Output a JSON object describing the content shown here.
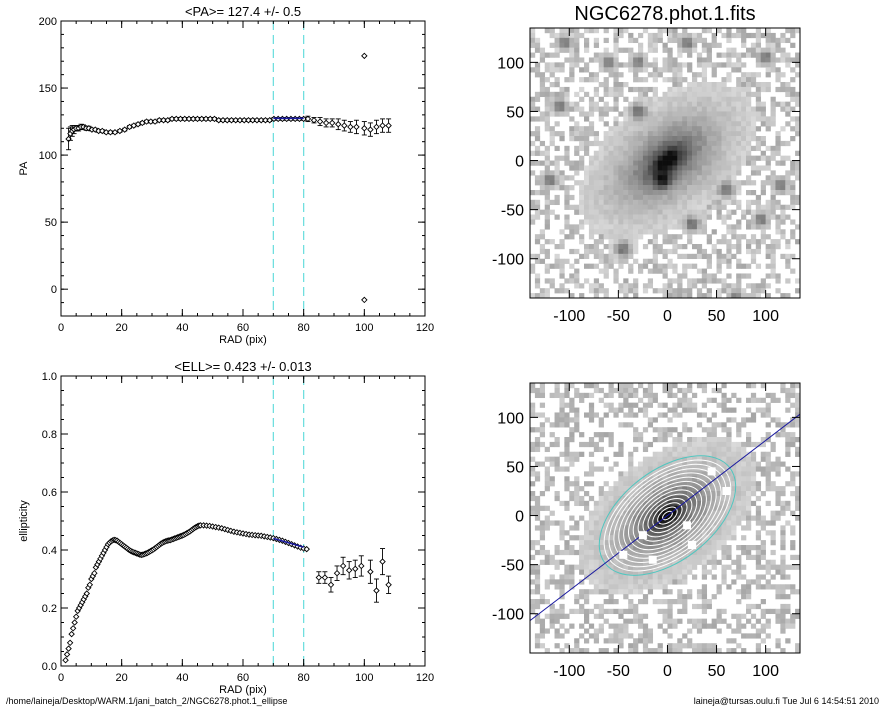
{
  "footer": {
    "path": "/home/laineja/Desktop/WARM.1/jani_batch_2/NGC6278.phot.1_ellipse",
    "user_stamp": "laineja@tursas.oulu.fi  Tue Jul  6 14:54:51 2010"
  },
  "colors": {
    "axis": "#000000",
    "data": "#000000",
    "fit": "#1a1aa0",
    "guide": "#66dddd",
    "isophote": "#ffffff",
    "outer_isophote": "#4fc7c0"
  },
  "chart_data": [
    {
      "id": "pa",
      "type": "scatter",
      "title": "<PA>= 127.4 +/-   0.5",
      "xlabel": "RAD (pix)",
      "ylabel": "PA",
      "xlim": [
        0,
        120
      ],
      "ylim": [
        -20,
        200
      ],
      "xticks": [
        0,
        20,
        40,
        60,
        80,
        100,
        120
      ],
      "yticks": [
        0,
        50,
        100,
        150,
        200
      ],
      "guide_lines_x": [
        70,
        80
      ],
      "fit": {
        "x": [
          70,
          80
        ],
        "y": [
          127.4,
          127.4
        ]
      },
      "x": [
        2.5,
        3.1,
        3.7,
        4.3,
        5,
        5.8,
        6.6,
        7.4,
        8.3,
        9.2,
        10.2,
        11.3,
        12.4,
        13.6,
        14.9,
        16.3,
        17.8,
        19.4,
        21,
        22.6,
        24,
        25.4,
        26.8,
        28.2,
        29.6,
        31,
        32.4,
        33.8,
        35.2,
        36.6,
        38,
        39.4,
        40.8,
        42.2,
        43.6,
        45,
        46.4,
        47.8,
        49.2,
        50.6,
        52,
        53.4,
        54.8,
        56.2,
        57.6,
        59,
        60.4,
        61.8,
        63.2,
        64.6,
        66,
        67.4,
        68.8,
        70.2,
        71.6,
        73,
        74.4,
        75.8,
        77.2,
        78.6,
        80,
        81.4,
        83.4,
        85.4,
        87.4,
        89.4,
        91.4,
        93.4,
        95.4,
        97.4,
        100,
        102,
        104,
        106,
        108
      ],
      "y": [
        112,
        116,
        118,
        119,
        120,
        120,
        121,
        121,
        120,
        120,
        119,
        119,
        118,
        118,
        117,
        117,
        117,
        118,
        119,
        121,
        122,
        123,
        124,
        125,
        125,
        125,
        126,
        126,
        126,
        127,
        127,
        127,
        127,
        127,
        127,
        127,
        127,
        127,
        127,
        127,
        126,
        126,
        126,
        126,
        126,
        126,
        126,
        126,
        126,
        126,
        126,
        126,
        126,
        127,
        127,
        127,
        127,
        127,
        127,
        127,
        127,
        127,
        126,
        125,
        124,
        124,
        123,
        122,
        121,
        121,
        120,
        119,
        121,
        122,
        122
      ],
      "err": [
        8,
        5,
        4,
        3,
        2,
        2,
        2,
        1.5,
        1.5,
        1.5,
        1,
        1,
        1,
        1,
        1,
        1,
        1,
        1,
        1,
        1,
        1,
        1,
        1,
        1,
        1,
        1,
        1,
        1,
        1,
        1,
        1,
        1,
        1,
        1,
        1,
        1,
        1,
        1,
        1,
        1,
        1,
        1,
        1,
        1,
        1,
        1,
        1,
        1,
        1,
        1,
        1,
        1,
        1,
        1,
        1,
        1,
        1,
        1,
        1,
        1,
        1,
        2,
        2,
        3,
        3,
        3,
        4,
        4,
        4,
        5,
        5,
        5,
        5,
        5,
        5
      ],
      "outliers": {
        "x": [
          100,
          100
        ],
        "y": [
          174,
          -8
        ]
      }
    },
    {
      "id": "ell",
      "type": "scatter",
      "title": "<ELL>= 0.423 +/-  0.013",
      "xlabel": "RAD (pix)",
      "ylabel": "ellipticity",
      "xlim": [
        0,
        120
      ],
      "ylim": [
        0,
        1
      ],
      "xticks": [
        0,
        20,
        40,
        60,
        80,
        100,
        120
      ],
      "yticks": [
        0.0,
        0.2,
        0.4,
        0.6,
        0.8,
        1.0
      ],
      "guide_lines_x": [
        70,
        80
      ],
      "fit": {
        "x": [
          70,
          80
        ],
        "y": [
          0.44,
          0.41
        ]
      },
      "x": [
        1.5,
        2,
        2.5,
        3,
        3.5,
        4,
        4.5,
        5,
        5.5,
        6,
        6.5,
        7,
        7.5,
        8,
        8.5,
        9,
        9.5,
        10,
        10.5,
        11,
        11.5,
        12,
        12.5,
        13,
        13.5,
        14,
        14.5,
        15,
        15.5,
        16,
        16.5,
        17,
        17.5,
        18,
        18.5,
        19,
        19.5,
        20,
        20.5,
        21,
        21.5,
        22,
        22.5,
        23,
        23.5,
        24,
        24.5,
        25,
        25.5,
        26,
        26.5,
        27,
        27.5,
        28,
        28.5,
        29,
        29.5,
        30,
        30.5,
        31,
        31.5,
        32,
        32.5,
        33,
        33.5,
        34,
        34.5,
        35,
        35.5,
        36,
        36.5,
        37,
        37.5,
        38,
        38.5,
        39,
        39.5,
        40,
        40.5,
        41,
        41.5,
        42,
        42.5,
        43,
        43.5,
        44,
        44.5,
        45,
        45.5,
        46,
        47,
        48,
        49,
        50,
        51,
        52,
        53,
        54,
        55,
        56,
        57,
        58,
        59,
        60,
        61,
        62,
        63,
        64,
        65,
        66,
        67,
        68,
        69,
        70,
        71,
        72,
        73,
        74,
        75,
        76,
        77,
        78,
        79,
        80,
        81
      ],
      "y": [
        0.02,
        0.04,
        0.06,
        0.08,
        0.11,
        0.13,
        0.15,
        0.17,
        0.19,
        0.2,
        0.21,
        0.22,
        0.23,
        0.24,
        0.25,
        0.27,
        0.28,
        0.3,
        0.31,
        0.32,
        0.34,
        0.35,
        0.36,
        0.37,
        0.38,
        0.39,
        0.4,
        0.41,
        0.42,
        0.425,
        0.43,
        0.433,
        0.435,
        0.434,
        0.432,
        0.428,
        0.424,
        0.42,
        0.416,
        0.412,
        0.408,
        0.404,
        0.4,
        0.397,
        0.394,
        0.392,
        0.39,
        0.388,
        0.386,
        0.384,
        0.383,
        0.384,
        0.386,
        0.388,
        0.39,
        0.393,
        0.396,
        0.399,
        0.402,
        0.406,
        0.41,
        0.414,
        0.418,
        0.422,
        0.425,
        0.428,
        0.43,
        0.432,
        0.433,
        0.434,
        0.436,
        0.438,
        0.44,
        0.442,
        0.444,
        0.446,
        0.448,
        0.45,
        0.452,
        0.455,
        0.458,
        0.461,
        0.464,
        0.468,
        0.472,
        0.476,
        0.479,
        0.482,
        0.484,
        0.485,
        0.485,
        0.484,
        0.483,
        0.481,
        0.479,
        0.477,
        0.475,
        0.472,
        0.469,
        0.466,
        0.463,
        0.461,
        0.459,
        0.457,
        0.455,
        0.453,
        0.452,
        0.451,
        0.45,
        0.449,
        0.447,
        0.445,
        0.443,
        0.441,
        0.438,
        0.435,
        0.432,
        0.428,
        0.424,
        0.42,
        0.416,
        0.412,
        0.408,
        0.405,
        0.403
      ],
      "sparse": {
        "x": [
          85,
          87,
          89,
          91,
          93,
          95,
          97,
          99,
          102,
          104,
          106,
          108
        ],
        "y": [
          0.305,
          0.305,
          0.28,
          0.32,
          0.345,
          0.33,
          0.335,
          0.345,
          0.325,
          0.26,
          0.36,
          0.28
        ],
        "err": [
          0.02,
          0.02,
          0.025,
          0.025,
          0.03,
          0.03,
          0.03,
          0.035,
          0.04,
          0.04,
          0.045,
          0.03
        ]
      }
    },
    {
      "id": "image",
      "type": "heatmap",
      "title": "NGC6278.phot.1.fits",
      "xlim": [
        -140,
        135
      ],
      "ylim": [
        -140,
        135
      ],
      "xticks": [
        -100,
        -50,
        0,
        50,
        100
      ],
      "yticks": [
        -100,
        -50,
        0,
        50,
        100
      ],
      "galaxy": {
        "center": [
          0,
          0
        ],
        "pa_deg": 127.4,
        "ellipticity": 0.423
      },
      "blobs": [
        [
          -30,
          100
        ],
        [
          -30,
          50
        ],
        [
          -105,
          120
        ],
        [
          20,
          120
        ],
        [
          -60,
          100
        ],
        [
          60,
          -30
        ],
        [
          25,
          -65
        ],
        [
          -5,
          -20
        ],
        [
          95,
          -60
        ],
        [
          70,
          -140
        ],
        [
          -45,
          -90
        ],
        [
          -120,
          -20
        ],
        [
          -110,
          55
        ],
        [
          100,
          105
        ],
        [
          115,
          -25
        ]
      ]
    },
    {
      "id": "model",
      "type": "heatmap",
      "title": "",
      "xlim": [
        -140,
        135
      ],
      "ylim": [
        -140,
        135
      ],
      "xticks": [
        -100,
        -50,
        0,
        50,
        100
      ],
      "yticks": [
        -100,
        -50,
        0,
        50,
        100
      ],
      "axis_line_deg": 37.4,
      "isophote_count": 14,
      "max_semi_major": 80,
      "masks": [
        [
          -25,
          -20
        ],
        [
          -45,
          -40
        ],
        [
          -15,
          -45
        ],
        [
          20,
          -10
        ],
        [
          45,
          45
        ],
        [
          25,
          -30
        ],
        [
          60,
          25
        ]
      ]
    }
  ]
}
